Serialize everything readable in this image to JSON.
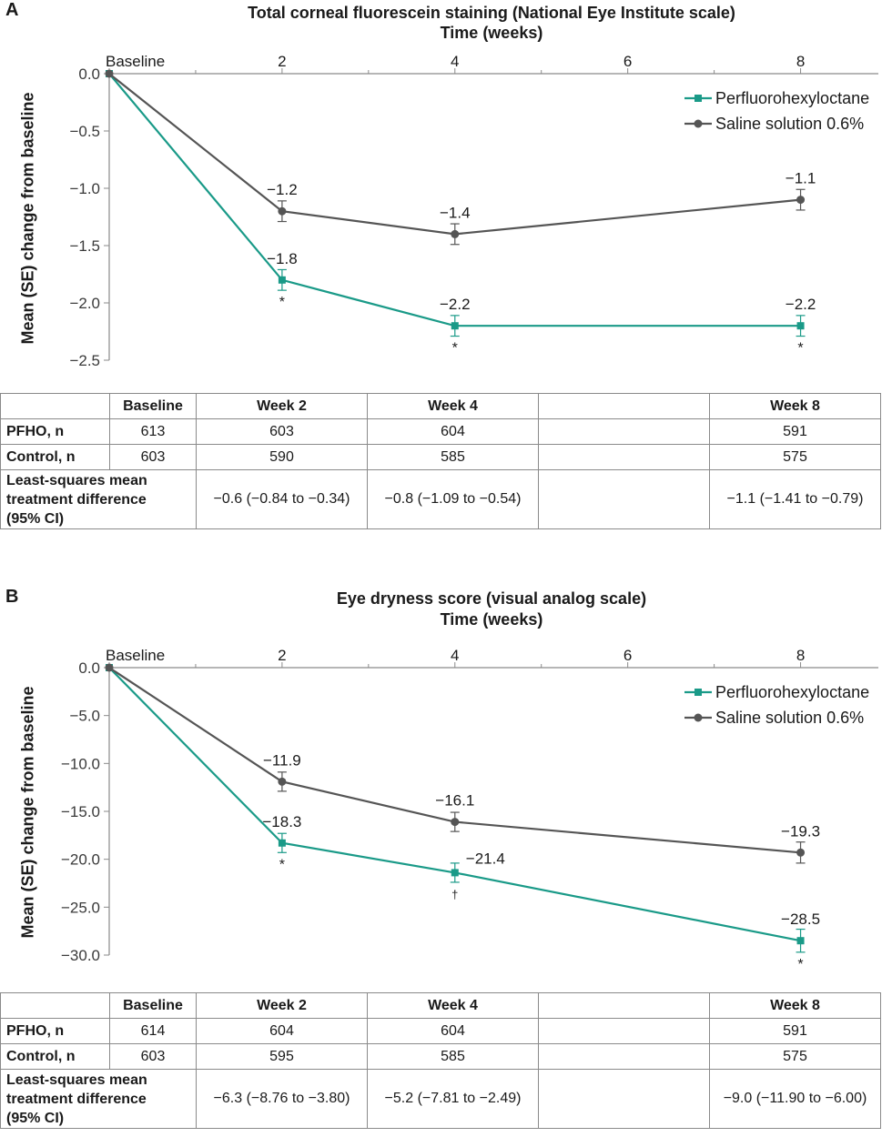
{
  "colors": {
    "pfho": "#1a9a88",
    "saline": "#555555",
    "axis": "#8a8a8a",
    "grid": "#d0d0d0"
  },
  "chart_data": [
    {
      "type": "line",
      "panel_label": "A",
      "title": "Total corneal fluorescein staining (National Eye Institute scale)",
      "xlabel": "Time (weeks)",
      "ylabel": "Mean (SE) change from baseline",
      "x_ticks": [
        "Baseline",
        "2",
        "4",
        "6",
        "8"
      ],
      "x_tick_values": [
        0,
        2,
        4,
        6,
        8
      ],
      "xlim": [
        0,
        8.9
      ],
      "ylim": [
        0,
        -2.5
      ],
      "y_ticks": [
        "0.0",
        "−0.5",
        "−1.0",
        "−1.5",
        "−2.0",
        "−2.5"
      ],
      "y_tick_values": [
        0,
        -0.5,
        -1.0,
        -1.5,
        -2.0,
        -2.5
      ],
      "legend": [
        "Perfluorohexyloctane",
        "Saline solution 0.6%"
      ],
      "series": [
        {
          "name": "Perfluorohexyloctane",
          "color_key": "pfho",
          "marker": "square",
          "x": [
            0,
            2,
            4,
            8
          ],
          "y": [
            0,
            -1.8,
            -2.2,
            -2.2
          ],
          "se": [
            0,
            0.09,
            0.09,
            0.09
          ],
          "labels": [
            "",
            "−1.8",
            "−2.2",
            "−2.2"
          ],
          "label_side": [
            "",
            "above",
            "above",
            "above"
          ],
          "markers": [
            "",
            "*",
            "*",
            "*"
          ]
        },
        {
          "name": "Saline solution 0.6%",
          "color_key": "saline",
          "marker": "circle",
          "x": [
            0,
            2,
            4,
            8
          ],
          "y": [
            0,
            -1.2,
            -1.4,
            -1.1
          ],
          "se": [
            0,
            0.09,
            0.09,
            0.09
          ],
          "labels": [
            "",
            "−1.2",
            "−1.4",
            "−1.1"
          ],
          "label_side": [
            "",
            "above",
            "above",
            "above"
          ],
          "markers": [
            "",
            "",
            "",
            ""
          ]
        }
      ],
      "table": {
        "header": [
          "",
          "Baseline",
          "Week 2",
          "Week 4",
          "",
          "Week 8"
        ],
        "rows": [
          [
            "PFHO, n",
            "613",
            "603",
            "604",
            "",
            "591"
          ],
          [
            "Control, n",
            "603",
            "590",
            "585",
            "",
            "575"
          ]
        ],
        "lsm_label": [
          "Least-squares mean",
          "treatment difference",
          "(95% CI)"
        ],
        "lsm_values": [
          "",
          "−0.6 (−0.84 to −0.34)",
          "−0.8 (−1.09 to −0.54)",
          "",
          "−1.1 (−1.41 to −0.79)"
        ]
      }
    },
    {
      "type": "line",
      "panel_label": "B",
      "title": "Eye dryness score (visual analog scale)",
      "xlabel": "Time (weeks)",
      "ylabel": "Mean (SE) change from baseline",
      "x_ticks": [
        "Baseline",
        "2",
        "4",
        "6",
        "8"
      ],
      "x_tick_values": [
        0,
        2,
        4,
        6,
        8
      ],
      "xlim": [
        0,
        8.9
      ],
      "ylim": [
        0,
        -30
      ],
      "y_ticks": [
        "0.0",
        "−5.0",
        "−10.0",
        "−15.0",
        "−20.0",
        "−25.0",
        "−30.0"
      ],
      "y_tick_values": [
        0,
        -5,
        -10,
        -15,
        -20,
        -25,
        -30
      ],
      "legend": [
        "Perfluorohexyloctane",
        "Saline solution 0.6%"
      ],
      "series": [
        {
          "name": "Perfluorohexyloctane",
          "color_key": "pfho",
          "marker": "square",
          "x": [
            0,
            2,
            4,
            8
          ],
          "y": [
            0,
            -18.3,
            -21.4,
            -28.5
          ],
          "se": [
            0,
            1.0,
            1.0,
            1.2
          ],
          "labels": [
            "",
            "−18.3",
            "−21.4",
            "−28.5"
          ],
          "label_side": [
            "",
            "above",
            "right",
            "above"
          ],
          "markers": [
            "",
            "*",
            "†",
            "*"
          ]
        },
        {
          "name": "Saline solution 0.6%",
          "color_key": "saline",
          "marker": "circle",
          "x": [
            0,
            2,
            4,
            8
          ],
          "y": [
            0,
            -11.9,
            -16.1,
            -19.3
          ],
          "se": [
            0,
            1.0,
            1.0,
            1.1
          ],
          "labels": [
            "",
            "−11.9",
            "−16.1",
            "−19.3"
          ],
          "label_side": [
            "",
            "above",
            "above",
            "above"
          ],
          "markers": [
            "",
            "",
            "",
            ""
          ]
        }
      ],
      "table": {
        "header": [
          "",
          "Baseline",
          "Week 2",
          "Week 4",
          "",
          "Week 8"
        ],
        "rows": [
          [
            "PFHO, n",
            "614",
            "604",
            "604",
            "",
            "591"
          ],
          [
            "Control, n",
            "603",
            "595",
            "585",
            "",
            "575"
          ]
        ],
        "lsm_label": [
          "Least-squares mean",
          "treatment difference",
          "(95% CI)"
        ],
        "lsm_values": [
          "",
          "−6.3 (−8.76 to −3.80)",
          "−5.2 (−7.81 to −2.49)",
          "",
          "−9.0 (−11.90 to −6.00)"
        ]
      }
    }
  ]
}
